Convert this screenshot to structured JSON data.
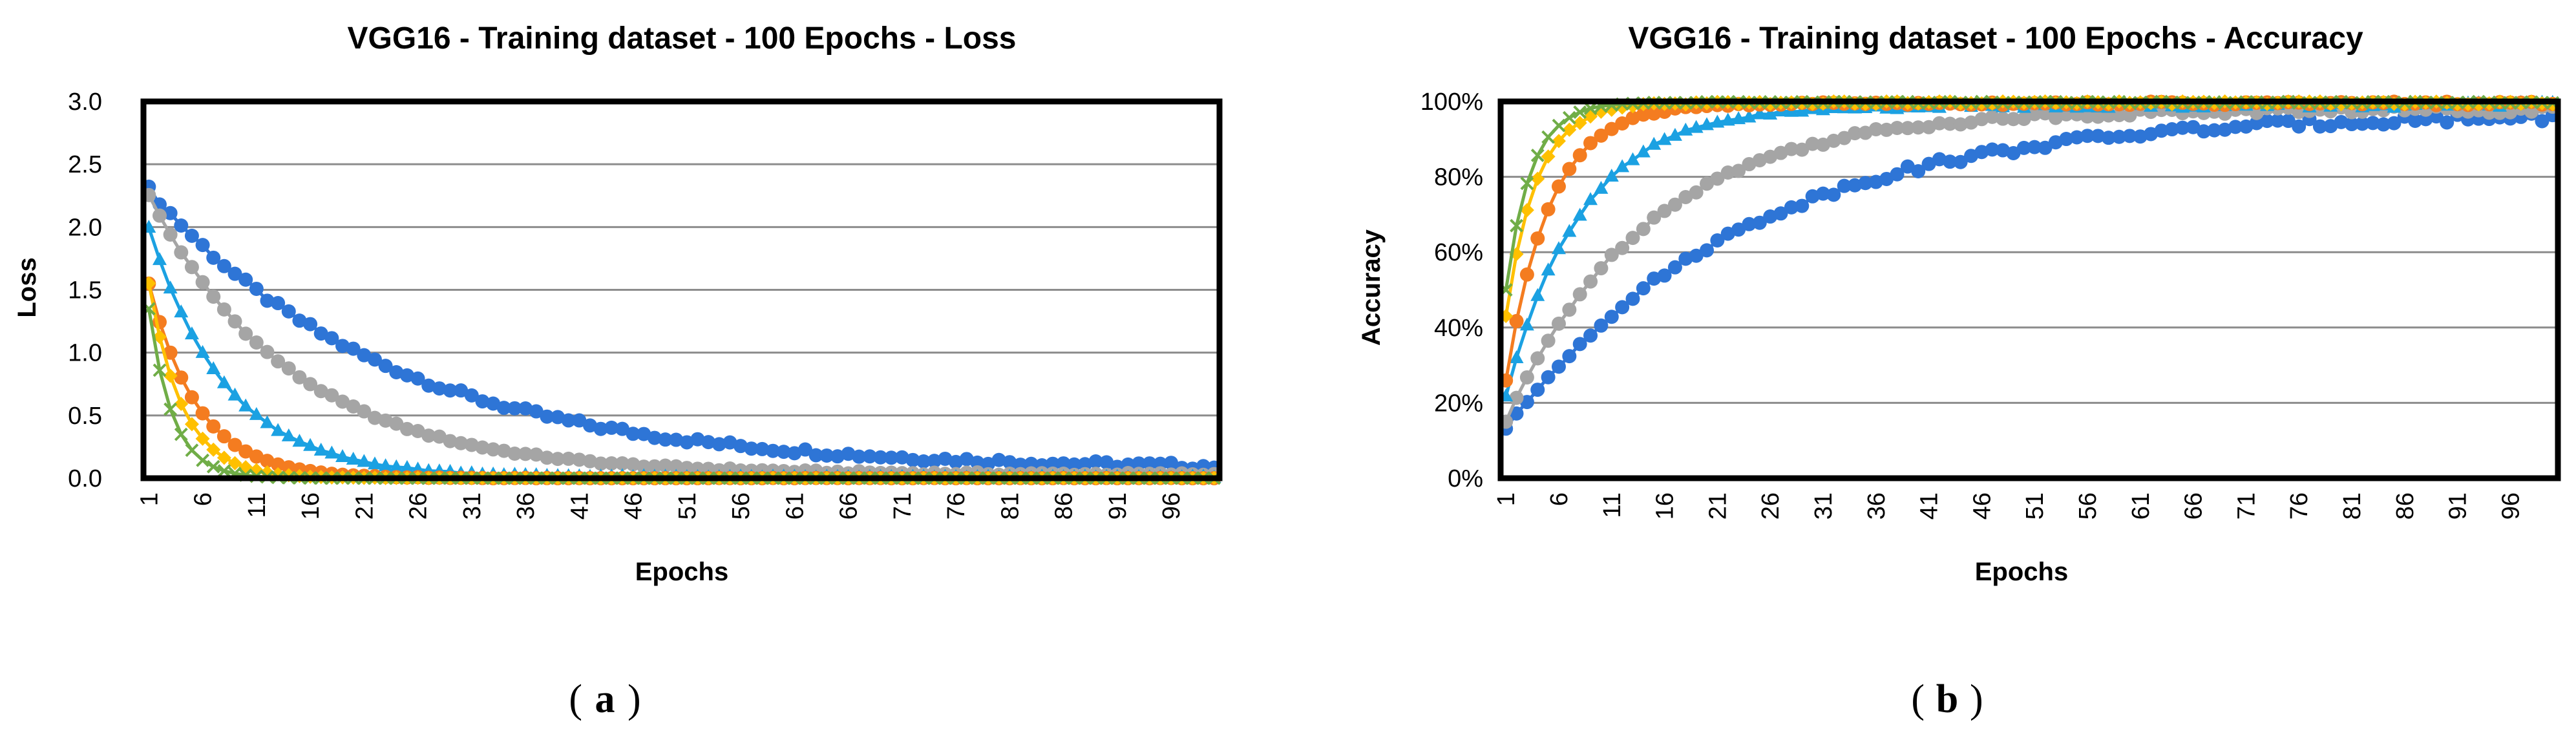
{
  "figure": {
    "panel_a": "a",
    "panel_b": "b"
  },
  "colors": {
    "blue": "#2E75D6",
    "gray": "#A5A5A5",
    "light_blue": "#1BA1E2",
    "orange": "#F47C20",
    "yellow": "#FFC000",
    "green": "#70AD47"
  },
  "chart_data": [
    {
      "type": "line",
      "title": "VGG16 - Training dataset - 100 Epochs - Loss",
      "xlabel": "Epochs",
      "ylabel": "Loss",
      "ylim": [
        0,
        3.0
      ],
      "yticks": [
        "0.0",
        "0.5",
        "1.0",
        "1.5",
        "2.0",
        "2.5",
        "3.0"
      ],
      "yticks_values": [
        0,
        0.5,
        1.0,
        1.5,
        2.0,
        2.5,
        3.0
      ],
      "xticks": [
        "1",
        "6",
        "11",
        "16",
        "21",
        "26",
        "31",
        "36",
        "41",
        "46",
        "51",
        "56",
        "61",
        "66",
        "71",
        "76",
        "81",
        "86",
        "91",
        "96"
      ],
      "x_range": [
        1,
        100
      ],
      "grid": true,
      "legend": "none",
      "series": [
        {
          "name": "blue-circles",
          "color": "#2E75D6",
          "marker": "circle",
          "start": 2.3,
          "end": 0.07,
          "rate": 0.045,
          "offset": 0.025,
          "shape": "exp"
        },
        {
          "name": "gray-circles",
          "color": "#A5A5A5",
          "marker": "circle",
          "start": 2.25,
          "end": 0.03,
          "rate": 0.075,
          "offset": 0.01,
          "shape": "exp"
        },
        {
          "name": "light-blue-triangles",
          "color": "#1BA1E2",
          "marker": "triangle",
          "start": 2.0,
          "end": 0.01,
          "rate": 0.14,
          "offset": 0.005,
          "shape": "exp"
        },
        {
          "name": "orange-circles",
          "color": "#F47C20",
          "marker": "circle",
          "start": 1.55,
          "end": 0.0,
          "rate": 0.22,
          "offset": 0.002,
          "shape": "exp"
        },
        {
          "name": "yellow-diamonds",
          "color": "#FFC000",
          "marker": "diamond",
          "start": 1.55,
          "end": 0.0,
          "rate": 0.32,
          "offset": 0.002,
          "shape": "exp"
        },
        {
          "name": "green-crosses",
          "color": "#70AD47",
          "marker": "cross",
          "start": 1.35,
          "end": 0.0,
          "rate": 0.45,
          "offset": 0.001,
          "shape": "exp"
        }
      ]
    },
    {
      "type": "line",
      "title": "VGG16 - Training dataset - 100 Epochs - Accuracy",
      "xlabel": "Epochs",
      "ylabel": "Accuracy",
      "ylim": [
        0,
        100
      ],
      "yticks": [
        "0%",
        "20%",
        "40%",
        "60%",
        "80%",
        "100%"
      ],
      "yticks_values": [
        0,
        20,
        40,
        60,
        80,
        100
      ],
      "xticks": [
        "1",
        "6",
        "11",
        "16",
        "21",
        "26",
        "31",
        "36",
        "41",
        "46",
        "51",
        "56",
        "61",
        "66",
        "71",
        "76",
        "81",
        "86",
        "91",
        "96"
      ],
      "x_range": [
        1,
        100
      ],
      "grid": true,
      "legend": "none",
      "series": [
        {
          "name": "blue-circles",
          "color": "#2E75D6",
          "marker": "circle",
          "start": 13,
          "end": 97,
          "rate": 0.045,
          "offset": 0.5,
          "shape": "rise"
        },
        {
          "name": "gray-circles",
          "color": "#A5A5A5",
          "marker": "circle",
          "start": 15,
          "end": 98,
          "rate": 0.075,
          "offset": 0.4,
          "shape": "rise"
        },
        {
          "name": "light-blue-triangles",
          "color": "#1BA1E2",
          "marker": "triangle",
          "start": 22,
          "end": 99,
          "rate": 0.14,
          "offset": 0.3,
          "shape": "rise"
        },
        {
          "name": "orange-circles",
          "color": "#F47C20",
          "marker": "circle",
          "start": 26,
          "end": 99.5,
          "rate": 0.24,
          "offset": 0.2,
          "shape": "rise"
        },
        {
          "name": "yellow-diamonds",
          "color": "#FFC000",
          "marker": "diamond",
          "start": 43,
          "end": 99.7,
          "rate": 0.34,
          "offset": 0.2,
          "shape": "rise"
        },
        {
          "name": "green-crosses",
          "color": "#70AD47",
          "marker": "cross",
          "start": 50,
          "end": 99.8,
          "rate": 0.42,
          "offset": 0.1,
          "shape": "rise"
        }
      ]
    }
  ]
}
